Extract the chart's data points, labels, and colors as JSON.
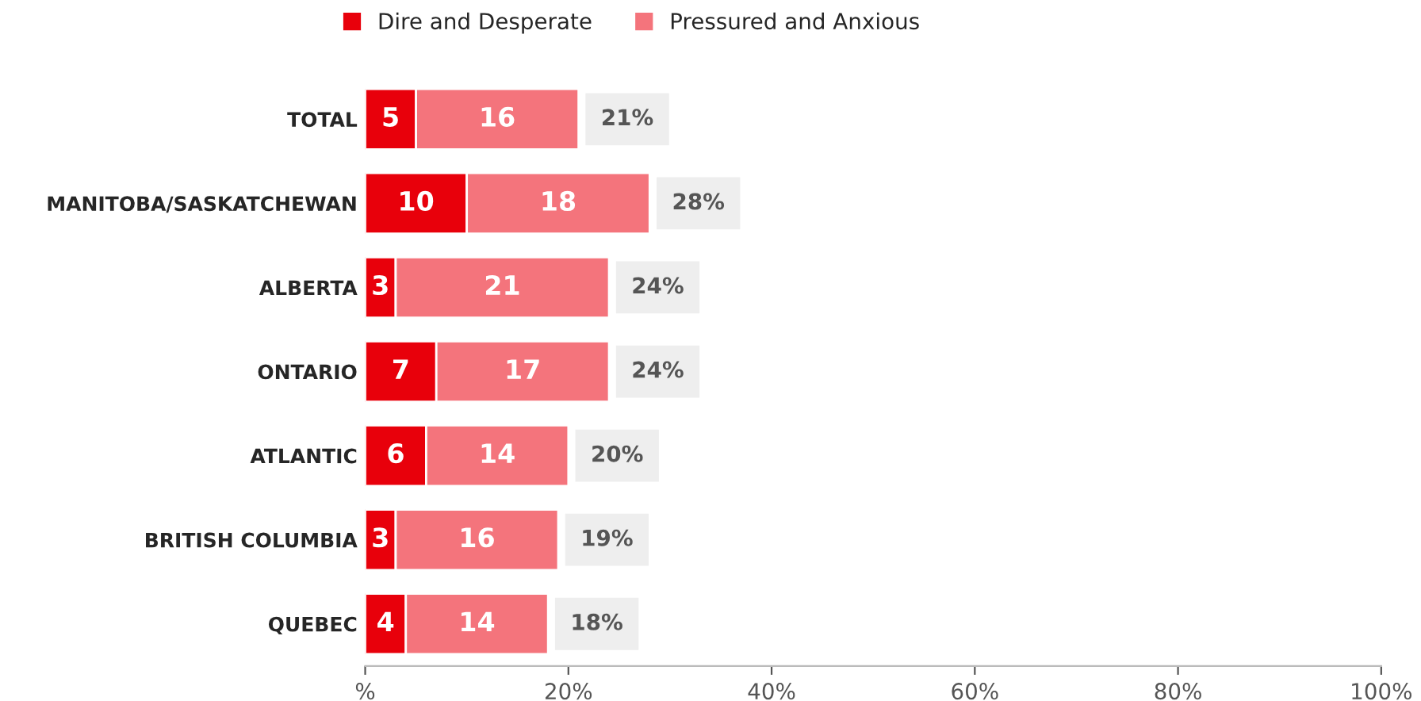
{
  "chart_data": {
    "type": "bar",
    "orientation": "horizontal",
    "stacked": true,
    "categories": [
      "TOTAL",
      "MANITOBA/SASKATCHEWAN",
      "ALBERTA",
      "ONTARIO",
      "ATLANTIC",
      "BRITISH COLUMBIA",
      "QUEBEC"
    ],
    "series": [
      {
        "name": "Dire and Desperate",
        "color": "#e8000b",
        "values": [
          5,
          10,
          3,
          7,
          6,
          3,
          4
        ]
      },
      {
        "name": "Pressured and Anxious",
        "color": "#f4747c",
        "values": [
          16,
          18,
          21,
          17,
          14,
          16,
          14
        ]
      }
    ],
    "totals": [
      "21%",
      "28%",
      "24%",
      "24%",
      "20%",
      "19%",
      "18%"
    ],
    "data_labels": true,
    "xlim": [
      0,
      100
    ],
    "xticks": [
      {
        "value": 0,
        "label": "%"
      },
      {
        "value": 20,
        "label": "20%"
      },
      {
        "value": 40,
        "label": "40%"
      },
      {
        "value": 60,
        "label": "60%"
      },
      {
        "value": 80,
        "label": "80%"
      },
      {
        "value": 100,
        "label": "100%"
      }
    ],
    "legend": "top",
    "grid": false
  }
}
